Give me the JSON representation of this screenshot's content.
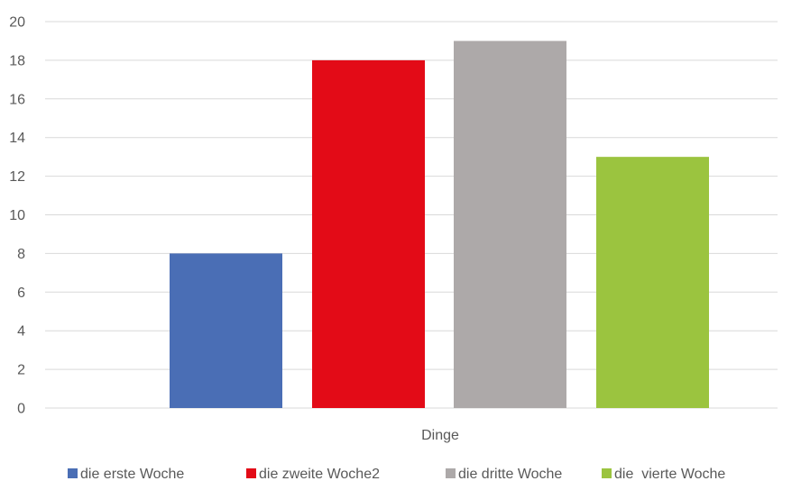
{
  "chart_data": {
    "type": "bar",
    "categories": [
      "Dinge"
    ],
    "series": [
      {
        "name": "die erste Woche",
        "values": [
          8
        ],
        "color": "#4a6eb5"
      },
      {
        "name": "die zweite Woche2",
        "values": [
          18
        ],
        "color": "#e30b17"
      },
      {
        "name": "die dritte Woche",
        "values": [
          19
        ],
        "color": "#ada9a9"
      },
      {
        "name": "die  vierte Woche",
        "values": [
          13
        ],
        "color": "#9bc43f"
      }
    ],
    "title": "",
    "xlabel": "",
    "ylabel": "",
    "ylim": [
      0,
      20
    ],
    "yticks": [
      0,
      2,
      4,
      6,
      8,
      10,
      12,
      14,
      16,
      18,
      20
    ],
    "grid": true,
    "legend": "bottom"
  }
}
